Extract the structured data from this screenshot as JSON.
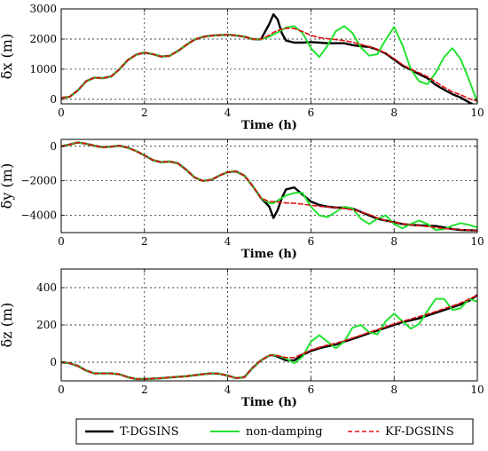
{
  "chart_data": [
    {
      "type": "line",
      "xlabel": "Time (h)",
      "ylabel": "δx (m)",
      "xlim": [
        0,
        10
      ],
      "ylim": [
        -150,
        3000
      ],
      "xticks": [
        "0",
        "2",
        "4",
        "6",
        "8",
        "10"
      ],
      "yticks": [
        {
          "v": 0,
          "t": "0"
        },
        {
          "v": 1000,
          "t": "1000"
        },
        {
          "v": 2000,
          "t": "2000"
        },
        {
          "v": 3000,
          "t": "3000"
        }
      ],
      "grid": true,
      "x": [
        0,
        0.2,
        0.4,
        0.6,
        0.8,
        1,
        1.2,
        1.4,
        1.6,
        1.8,
        2,
        2.2,
        2.4,
        2.6,
        2.8,
        3,
        3.2,
        3.4,
        3.6,
        3.8,
        4,
        4.2,
        4.4,
        4.6,
        4.8,
        5,
        5.1,
        5.2,
        5.3,
        5.4,
        5.6,
        5.8,
        6,
        6.2,
        6.4,
        6.6,
        6.8,
        7,
        7.2,
        7.4,
        7.6,
        7.8,
        8,
        8.2,
        8.4,
        8.6,
        8.8,
        9,
        9.2,
        9.4,
        9.6,
        9.8,
        10
      ],
      "series": [
        {
          "name": "T-DGSINS",
          "color": "#000000",
          "width": 2.4,
          "dash": "",
          "values": [
            50,
            80,
            300,
            600,
            720,
            700,
            760,
            1000,
            1300,
            1480,
            1550,
            1500,
            1420,
            1440,
            1600,
            1800,
            1980,
            2070,
            2110,
            2130,
            2140,
            2120,
            2080,
            2000,
            1990,
            2500,
            2820,
            2650,
            2200,
            1950,
            1880,
            1880,
            1900,
            1880,
            1860,
            1860,
            1860,
            1800,
            1760,
            1740,
            1650,
            1520,
            1320,
            1120,
            980,
            840,
            700,
            480,
            320,
            170,
            60,
            -100,
            -240
          ]
        },
        {
          "name": "non-damping",
          "color": "#22e22e",
          "width": 2,
          "dash": "",
          "values": [
            50,
            80,
            300,
            600,
            720,
            700,
            760,
            1000,
            1300,
            1480,
            1550,
            1500,
            1420,
            1440,
            1600,
            1800,
            1980,
            2070,
            2110,
            2130,
            2140,
            2120,
            2080,
            2000,
            1990,
            2080,
            2150,
            2220,
            2300,
            2380,
            2430,
            2200,
            1700,
            1400,
            1780,
            2260,
            2430,
            2200,
            1720,
            1450,
            1500,
            1980,
            2400,
            1800,
            1000,
            600,
            500,
            880,
            1400,
            1700,
            1330,
            650,
            -100
          ]
        },
        {
          "name": "KF-DGSINS",
          "color": "#e01010",
          "width": 1.6,
          "dash": "5 3",
          "values": [
            50,
            80,
            300,
            600,
            720,
            700,
            760,
            1000,
            1300,
            1480,
            1550,
            1500,
            1420,
            1440,
            1600,
            1800,
            1980,
            2070,
            2110,
            2130,
            2140,
            2120,
            2080,
            2000,
            2000,
            2130,
            2220,
            2280,
            2330,
            2360,
            2350,
            2250,
            2120,
            2050,
            2010,
            1980,
            1950,
            1900,
            1820,
            1750,
            1660,
            1530,
            1350,
            1150,
            1000,
            880,
            750,
            580,
            400,
            250,
            150,
            20,
            -60
          ]
        }
      ]
    },
    {
      "type": "line",
      "xlabel": "Time (h)",
      "ylabel": "δy (m)",
      "xlim": [
        0,
        10
      ],
      "ylim": [
        -5000,
        400
      ],
      "xticks": [
        "0",
        "2",
        "4",
        "6",
        "8",
        "10"
      ],
      "yticks": [
        {
          "v": 0,
          "t": "0"
        },
        {
          "v": -2000,
          "t": "−2000"
        },
        {
          "v": -4000,
          "t": "−4000"
        }
      ],
      "grid": true,
      "x": [
        0,
        0.2,
        0.4,
        0.6,
        0.8,
        1,
        1.2,
        1.4,
        1.6,
        1.8,
        2,
        2.2,
        2.4,
        2.6,
        2.8,
        3,
        3.2,
        3.4,
        3.6,
        3.8,
        4,
        4.2,
        4.4,
        4.6,
        4.8,
        5,
        5.1,
        5.2,
        5.3,
        5.4,
        5.6,
        5.8,
        6,
        6.2,
        6.4,
        6.6,
        6.8,
        7,
        7.2,
        7.4,
        7.6,
        7.8,
        8,
        8.2,
        8.4,
        8.6,
        8.8,
        9,
        9.2,
        9.4,
        9.6,
        9.8,
        10
      ],
      "series": [
        {
          "name": "T-DGSINS",
          "color": "#000000",
          "width": 2.4,
          "dash": "",
          "values": [
            0,
            100,
            220,
            150,
            30,
            -50,
            -20,
            30,
            -80,
            -280,
            -520,
            -800,
            -920,
            -880,
            -980,
            -1350,
            -1800,
            -2000,
            -1950,
            -1700,
            -1500,
            -1450,
            -1700,
            -2300,
            -3000,
            -3500,
            -4150,
            -3700,
            -3000,
            -2500,
            -2380,
            -2800,
            -3200,
            -3400,
            -3500,
            -3550,
            -3560,
            -3600,
            -3800,
            -4000,
            -4200,
            -4300,
            -4400,
            -4500,
            -4550,
            -4580,
            -4600,
            -4620,
            -4700,
            -4800,
            -4850,
            -4860,
            -4880
          ]
        },
        {
          "name": "non-damping",
          "color": "#22e22e",
          "width": 2,
          "dash": "",
          "values": [
            0,
            100,
            220,
            150,
            30,
            -50,
            -20,
            30,
            -80,
            -280,
            -520,
            -800,
            -920,
            -880,
            -980,
            -1350,
            -1800,
            -2000,
            -1950,
            -1700,
            -1500,
            -1450,
            -1700,
            -2300,
            -3000,
            -3300,
            -3300,
            -3150,
            -3000,
            -2850,
            -2700,
            -2700,
            -3500,
            -4000,
            -4100,
            -3800,
            -3500,
            -3600,
            -4200,
            -4500,
            -4200,
            -4000,
            -4500,
            -4750,
            -4500,
            -4300,
            -4500,
            -4850,
            -4800,
            -4600,
            -4450,
            -4550,
            -4700
          ]
        },
        {
          "name": "KF-DGSINS",
          "color": "#e01010",
          "width": 1.6,
          "dash": "5 3",
          "values": [
            0,
            100,
            220,
            150,
            30,
            -50,
            -20,
            30,
            -80,
            -280,
            -520,
            -800,
            -920,
            -880,
            -980,
            -1350,
            -1800,
            -2000,
            -1950,
            -1700,
            -1500,
            -1450,
            -1700,
            -2300,
            -3000,
            -3200,
            -3200,
            -3220,
            -3250,
            -3280,
            -3300,
            -3350,
            -3420,
            -3480,
            -3520,
            -3560,
            -3600,
            -3680,
            -3800,
            -3950,
            -4150,
            -4300,
            -4400,
            -4480,
            -4550,
            -4600,
            -4650,
            -4700,
            -4760,
            -4800,
            -4830,
            -4860,
            -4880
          ]
        }
      ]
    },
    {
      "type": "line",
      "xlabel": "Time (h)",
      "ylabel": "δz (m)",
      "xlim": [
        0,
        10
      ],
      "ylim": [
        -100,
        500
      ],
      "xticks": [
        "0",
        "2",
        "4",
        "6",
        "8",
        "10"
      ],
      "yticks": [
        {
          "v": 0,
          "t": "0"
        },
        {
          "v": 200,
          "t": "200"
        },
        {
          "v": 400,
          "t": "400"
        }
      ],
      "grid": true,
      "x": [
        0,
        0.2,
        0.4,
        0.6,
        0.8,
        1,
        1.2,
        1.4,
        1.6,
        1.8,
        2,
        2.2,
        2.4,
        2.6,
        2.8,
        3,
        3.2,
        3.4,
        3.6,
        3.8,
        4,
        4.2,
        4.4,
        4.6,
        4.8,
        5,
        5.1,
        5.2,
        5.3,
        5.4,
        5.6,
        5.8,
        6,
        6.2,
        6.4,
        6.6,
        6.8,
        7,
        7.2,
        7.4,
        7.6,
        7.8,
        8,
        8.2,
        8.4,
        8.6,
        8.8,
        9,
        9.2,
        9.4,
        9.6,
        9.8,
        10
      ],
      "series": [
        {
          "name": "T-DGSINS",
          "color": "#000000",
          "width": 2.4,
          "dash": "",
          "values": [
            0,
            -5,
            -20,
            -45,
            -60,
            -60,
            -60,
            -65,
            -80,
            -90,
            -90,
            -88,
            -85,
            -82,
            -78,
            -75,
            -70,
            -65,
            -60,
            -62,
            -72,
            -85,
            -80,
            -30,
            10,
            35,
            38,
            30,
            20,
            10,
            10,
            40,
            60,
            75,
            85,
            95,
            110,
            125,
            140,
            155,
            170,
            185,
            200,
            215,
            225,
            235,
            250,
            265,
            280,
            295,
            310,
            330,
            360
          ]
        },
        {
          "name": "non-damping",
          "color": "#22e22e",
          "width": 2,
          "dash": "",
          "values": [
            0,
            -5,
            -20,
            -45,
            -60,
            -60,
            -60,
            -65,
            -80,
            -90,
            -90,
            -88,
            -85,
            -82,
            -78,
            -75,
            -70,
            -65,
            -60,
            -62,
            -72,
            -85,
            -80,
            -30,
            10,
            35,
            38,
            35,
            28,
            20,
            -5,
            30,
            110,
            145,
            110,
            75,
            110,
            185,
            200,
            160,
            150,
            220,
            260,
            220,
            180,
            205,
            275,
            340,
            340,
            280,
            290,
            340,
            325
          ]
        },
        {
          "name": "KF-DGSINS",
          "color": "#e01010",
          "width": 1.6,
          "dash": "5 3",
          "values": [
            0,
            -5,
            -20,
            -45,
            -60,
            -60,
            -60,
            -65,
            -80,
            -90,
            -90,
            -88,
            -85,
            -82,
            -78,
            -75,
            -70,
            -65,
            -60,
            -62,
            -72,
            -85,
            -80,
            -30,
            10,
            35,
            38,
            35,
            30,
            25,
            25,
            45,
            65,
            80,
            92,
            102,
            115,
            130,
            145,
            160,
            175,
            190,
            205,
            220,
            232,
            245,
            258,
            272,
            287,
            302,
            318,
            338,
            360
          ]
        }
      ]
    }
  ]
}
